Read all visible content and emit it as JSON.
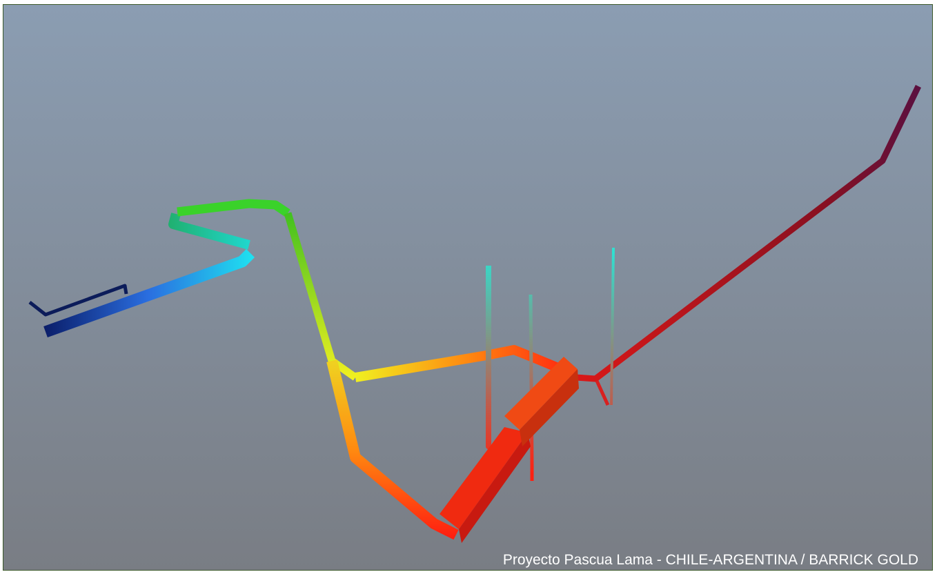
{
  "caption": "Proyecto Pascua Lama - CHILE-ARGENTINA / BARRICK GOLD"
}
